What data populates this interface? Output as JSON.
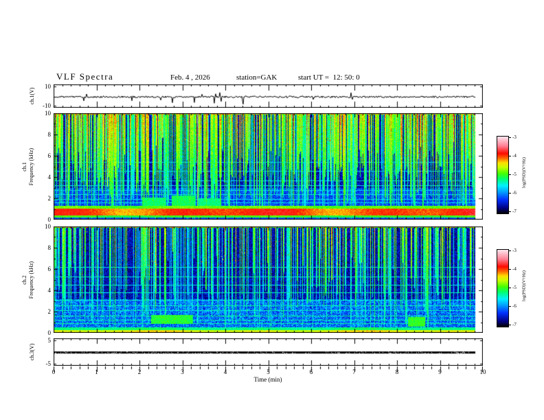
{
  "header": {
    "title": "VLF Spectra",
    "date": "Feb. 4 , 2026",
    "station": "station=GAK",
    "start_ut": "start UT =  12: 50: 0"
  },
  "time_axis": {
    "label": "Time  (min)",
    "tick_labels": [
      "0",
      "1",
      "2",
      "3",
      "4",
      "5",
      "6",
      "7",
      "8",
      "9",
      "10"
    ],
    "range": [
      0,
      10
    ],
    "minutes_of_data": 9.83,
    "minor_ticks_per_major": 4
  },
  "colorbar": {
    "label": "log(PSD)(V²/Hz)",
    "tick_labels": [
      "-3",
      "-4",
      "-5",
      "-6",
      "-7"
    ],
    "range": [
      -7,
      -3
    ]
  },
  "colormap": {
    "stops": [
      [
        0.0,
        "#000000"
      ],
      [
        0.07,
        "#000082"
      ],
      [
        0.18,
        "#0032ff"
      ],
      [
        0.28,
        "#00a0ff"
      ],
      [
        0.36,
        "#00f0ff"
      ],
      [
        0.45,
        "#00ff6e"
      ],
      [
        0.52,
        "#46ff00"
      ],
      [
        0.6,
        "#c8ff00"
      ],
      [
        0.66,
        "#ffdc00"
      ],
      [
        0.72,
        "#ff6400"
      ],
      [
        0.78,
        "#ff0a00"
      ],
      [
        0.88,
        "#ff8296"
      ],
      [
        1.0,
        "#ffe6ee"
      ]
    ]
  },
  "chart_data": [
    {
      "type": "line",
      "name": "ch1-voltage-waveform",
      "ylabel": "ch.1(V)",
      "ytick_labels": [
        "10",
        "-10"
      ],
      "yticks": [
        10,
        -10
      ],
      "ylim": [
        -12,
        12
      ],
      "xlim": [
        0,
        10
      ],
      "mean_v": -0.8,
      "noise_v": 0.9,
      "down_spike_prob": 0.012,
      "up_spike_prob": 0.005,
      "description": "Noisy VLF channel-1 voltage trace near 0 V with impulsive downward spikes to about -8 V, data ending at 9.83 min"
    },
    {
      "type": "heatmap",
      "name": "ch1-spectrogram",
      "ylabel_line1": "ch.1",
      "ylabel_line2": "Frequency (kHz)",
      "ytick_labels": [
        "10",
        "8",
        "6",
        "4",
        "2",
        "0"
      ],
      "ylim": [
        0,
        10
      ],
      "xlim": [
        0,
        10
      ],
      "zlim": [
        -7,
        -3
      ],
      "streaks": {
        "density": 0.78,
        "min_intensity": 0.35,
        "strength": 2.1,
        "hot_prob": 0.05
      },
      "base_level": -6.85,
      "low_noise": {
        "f_below": 3.0,
        "add": 0.35
      },
      "bands": [
        {
          "f_lo": 0.0,
          "f_hi": 0.2,
          "level": -6.35,
          "t_var": 0.0
        },
        {
          "f_lo": 0.2,
          "f_hi": 0.45,
          "level": -5.25,
          "t_var": 0.2
        },
        {
          "f_lo": 0.45,
          "f_hi": 1.05,
          "level": -4.45,
          "t_var": 0.55
        },
        {
          "f_lo": 1.05,
          "f_hi": 1.3,
          "level": -5.1,
          "t_var": 0.2
        }
      ],
      "h_lines": [
        {
          "f": 1.6,
          "level": -5.75
        },
        {
          "f": 1.95,
          "level": -5.8
        },
        {
          "f": 2.4,
          "level": -5.7
        },
        {
          "f": 2.75,
          "level": -5.85
        },
        {
          "f": 3.2,
          "level": -5.75
        },
        {
          "f": 3.7,
          "level": -5.85
        },
        {
          "f": 4.6,
          "level": -5.9
        },
        {
          "f": 5.4,
          "level": -5.9
        }
      ],
      "blobs": [
        {
          "t0": 2.1,
          "t1": 2.65,
          "f_lo": 1.2,
          "f_hi": 2.1,
          "level": -5.35
        },
        {
          "t0": 2.8,
          "t1": 3.35,
          "f_lo": 1.2,
          "f_hi": 2.3,
          "level": -5.3
        },
        {
          "t0": 3.45,
          "t1": 3.95,
          "f_lo": 1.2,
          "f_hi": 2.0,
          "level": -5.4
        }
      ],
      "description": "Channel-1 VLF spectrogram 0-10 kHz: dense green/cyan sferic streaks over dark blue background, strong yellow-orange-red hum band near 0.5-1 kHz, cyan band below it, horizontal blue lines at mid frequencies"
    },
    {
      "type": "heatmap",
      "name": "ch2-spectrogram",
      "ylabel_line1": "ch.2",
      "ylabel_line2": "Frequency (kHz)",
      "ytick_labels": [
        "10",
        "8",
        "6",
        "4",
        "2",
        "0"
      ],
      "ylim": [
        0,
        10
      ],
      "xlim": [
        0,
        10
      ],
      "zlim": [
        -7,
        -3
      ],
      "streaks": {
        "density": 0.5,
        "min_intensity": 0.25,
        "strength": 1.7,
        "hot_prob": 0.03
      },
      "base_level": -6.85,
      "low_noise": {
        "f_below": 3.2,
        "add": 0.5
      },
      "bands": [
        {
          "f_lo": 0.0,
          "f_hi": 0.12,
          "level": -6.6,
          "t_var": 0.0
        },
        {
          "f_lo": 0.12,
          "f_hi": 0.32,
          "level": -4.8,
          "t_var": 0.3
        },
        {
          "f_lo": 0.32,
          "f_hi": 0.55,
          "level": -5.5,
          "t_var": 0.2
        }
      ],
      "h_lines": [
        {
          "f": 0.9,
          "level": -5.5
        },
        {
          "f": 1.2,
          "level": -5.55
        },
        {
          "f": 1.6,
          "level": -5.5
        },
        {
          "f": 2.1,
          "level": -5.6
        },
        {
          "f": 2.6,
          "level": -5.55
        },
        {
          "f": 3.1,
          "level": -5.65
        },
        {
          "f": 3.8,
          "level": -5.6
        },
        {
          "f": 4.5,
          "level": -5.7
        },
        {
          "f": 5.3,
          "level": -5.65
        },
        {
          "f": 6.2,
          "level": -5.7
        }
      ],
      "blobs": [
        {
          "t0": 2.3,
          "t1": 3.3,
          "f_lo": 0.9,
          "f_hi": 1.7,
          "level": -5.2
        },
        {
          "t0": 8.4,
          "t1": 8.8,
          "f_lo": 0.6,
          "f_hi": 1.5,
          "level": -5.15
        }
      ],
      "description": "Channel-2 VLF spectrogram 0-10 kHz: darker/bluer than ch.1, thinner green streaks, many horizontal cyan lines, thin bright yellow-green band at ~0.2 kHz"
    },
    {
      "type": "line",
      "name": "ch3-voltage-waveform",
      "ylabel": "ch.3(V)",
      "ytick_labels": [
        "5",
        "-5"
      ],
      "yticks": [
        5,
        -5
      ],
      "ylim": [
        -6,
        6
      ],
      "xlim": [
        0,
        10
      ],
      "mean_v": -0.2,
      "style": "flat-dashed-thick",
      "description": "Channel-3 voltage: essentially constant near 0 V, rendered as a thick speckled black line ending at 9.83 min"
    }
  ]
}
